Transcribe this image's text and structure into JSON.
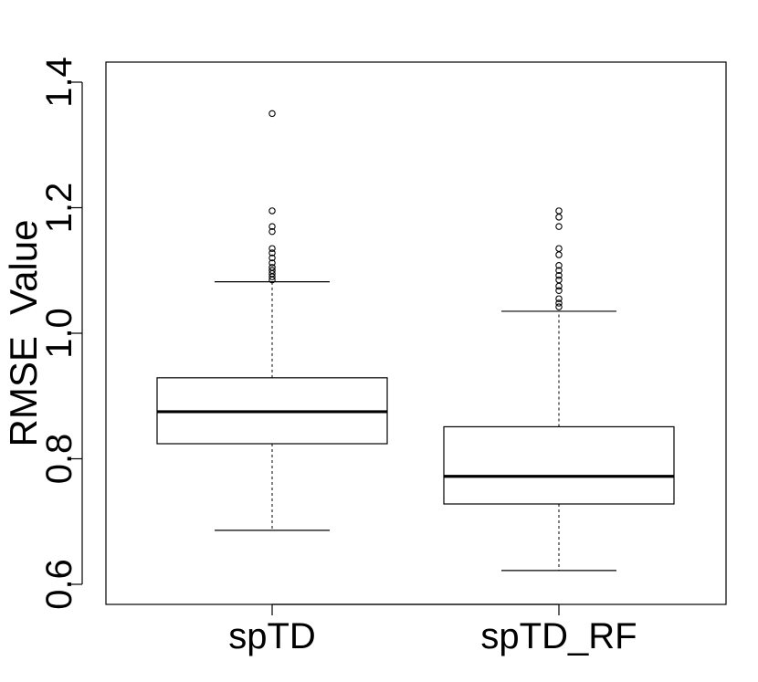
{
  "chart_data": {
    "type": "boxplot",
    "ylabel": "RMSE  Value",
    "ylim": [
      0.575,
      1.44
    ],
    "yticks": [
      "0.6",
      "0.8",
      "1.0",
      "1.2",
      "1.4"
    ],
    "categories": [
      "spTD",
      "spTD_RF"
    ],
    "boxes": [
      {
        "name": "spTD",
        "whisker_low": 0.686,
        "q1": 0.824,
        "median": 0.875,
        "q3": 0.929,
        "whisker_high": 1.082,
        "outliers": [
          1.35,
          1.195,
          1.17,
          1.162,
          1.135,
          1.128,
          1.12,
          1.112,
          1.105,
          1.1,
          1.095,
          1.09,
          1.085
        ]
      },
      {
        "name": "spTD_RF",
        "whisker_low": 0.622,
        "q1": 0.728,
        "median": 0.772,
        "q3": 0.851,
        "whisker_high": 1.035,
        "outliers": [
          1.195,
          1.185,
          1.17,
          1.135,
          1.125,
          1.108,
          1.1,
          1.092,
          1.085,
          1.075,
          1.068,
          1.055,
          1.048,
          1.042
        ]
      }
    ],
    "grid": false,
    "legend": "none"
  }
}
